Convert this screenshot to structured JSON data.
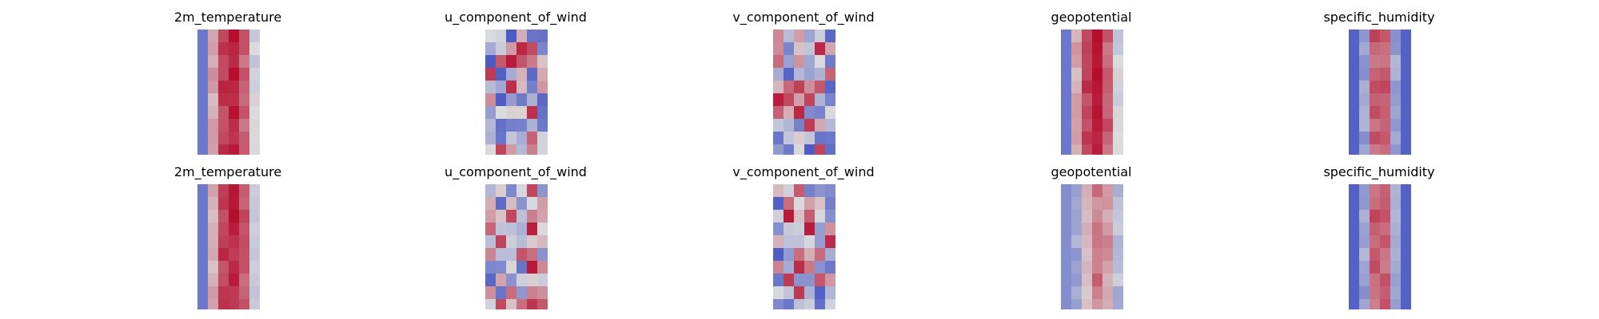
{
  "figure": {
    "colormap": "coolwarm",
    "colors": {
      "cold": "#3b4cc0",
      "neutral": "#dddddd",
      "warm": "#b40426"
    },
    "rows": [
      {
        "panels": [
          {
            "title": "2m_temperature",
            "pattern": "warm-core"
          },
          {
            "title": "u_component_of_wind",
            "pattern": "turbulent"
          },
          {
            "title": "v_component_of_wind",
            "pattern": "turbulent"
          },
          {
            "title": "geopotential",
            "pattern": "warm-core"
          },
          {
            "title": "specific_humidity",
            "pattern": "narrow-core"
          }
        ]
      },
      {
        "panels": [
          {
            "title": "2m_temperature",
            "pattern": "warm-core"
          },
          {
            "title": "u_component_of_wind",
            "pattern": "turbulent"
          },
          {
            "title": "v_component_of_wind",
            "pattern": "turbulent"
          },
          {
            "title": "geopotential",
            "pattern": "mild-core"
          },
          {
            "title": "specific_humidity",
            "pattern": "narrow-core"
          }
        ]
      }
    ]
  }
}
